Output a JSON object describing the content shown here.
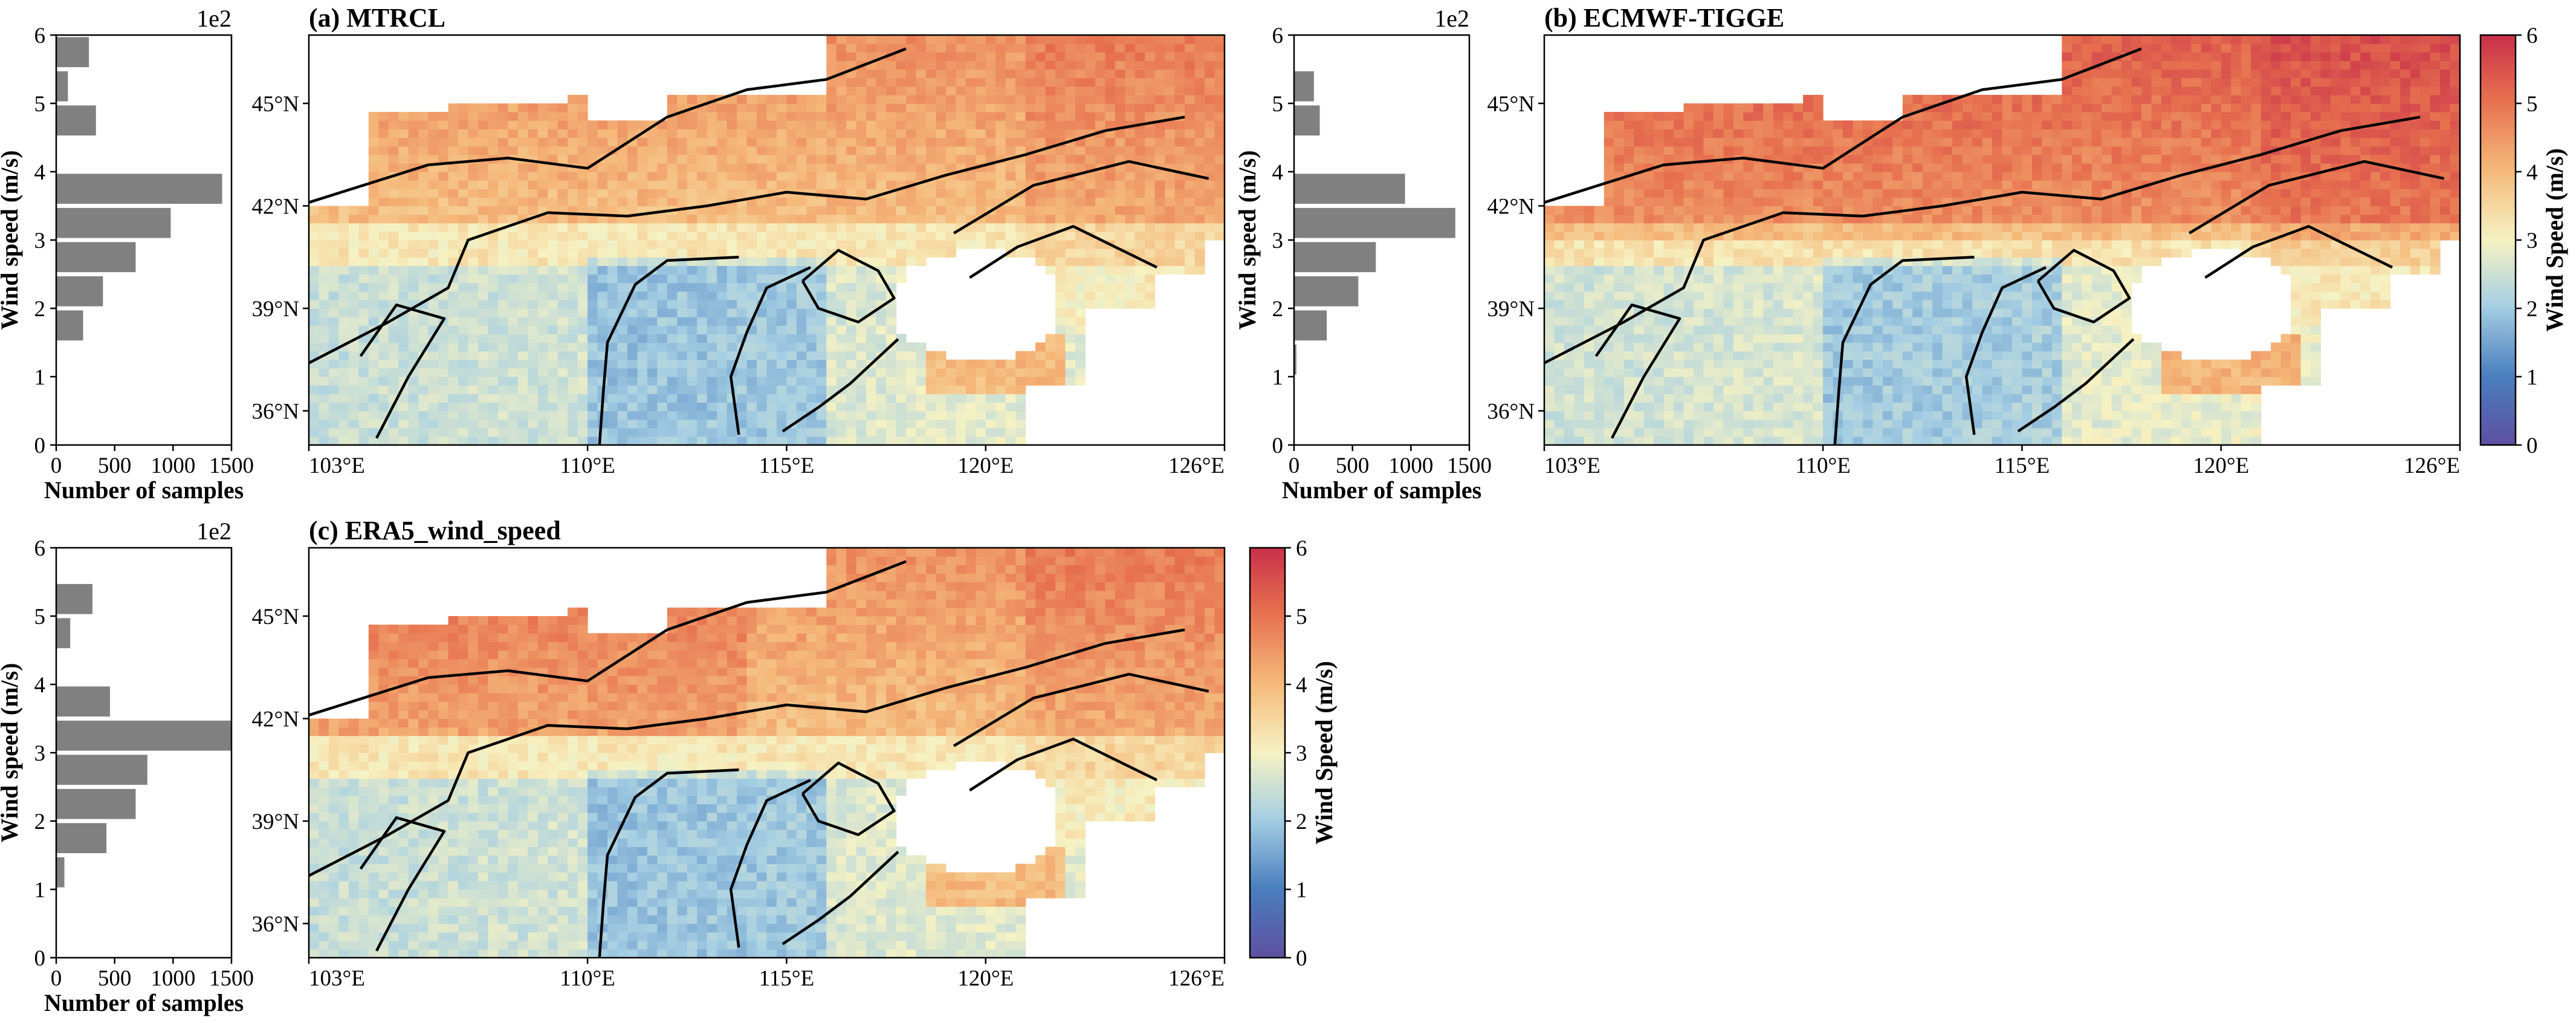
{
  "figure": {
    "panels": [
      {
        "id": "a",
        "title": "(a) MTRCL",
        "hist": {
          "multiplier": "1e2",
          "ylabel": "Wind speed (m/s)",
          "xlabel": "Number of samples",
          "yticks": [
            "0",
            "1",
            "2",
            "3",
            "4",
            "5",
            "6"
          ],
          "xticks": [
            "0",
            "500",
            "1000",
            "1500"
          ]
        }
      },
      {
        "id": "b",
        "title": "(b) ECMWF-TIGGE",
        "hist": {
          "multiplier": "1e2",
          "ylabel": "Wind speed (m/s)",
          "xlabel": "Number of samples",
          "yticks": [
            "0",
            "1",
            "2",
            "3",
            "4",
            "5",
            "6"
          ],
          "xticks": [
            "0",
            "500",
            "1000",
            "1500"
          ]
        }
      },
      {
        "id": "c",
        "title": "(c) ERA5_wind_speed",
        "hist": {
          "multiplier": "1e2",
          "ylabel": "Wind speed (m/s)",
          "xlabel": "Number of samples",
          "yticks": [
            "0",
            "1",
            "2",
            "3",
            "4",
            "5",
            "6"
          ],
          "xticks": [
            "0",
            "500",
            "1000",
            "1500"
          ]
        }
      }
    ],
    "map": {
      "lon_ticks": [
        "103°E",
        "110°E",
        "115°E",
        "120°E",
        "126°E"
      ],
      "lat_ticks": [
        "45°N",
        "42°N",
        "39°N",
        "36°N"
      ]
    },
    "colorbar": {
      "label": "Wind Speed (m/s)",
      "ticks": [
        "0",
        "1",
        "2",
        "3",
        "4",
        "5",
        "6"
      ],
      "stops": [
        "#5e4fa2",
        "#4a7fbf",
        "#a6cfe3",
        "#f6f2c3",
        "#f5b97a",
        "#e7714f",
        "#c9304a"
      ]
    }
  },
  "chart_data": [
    {
      "type": "bar",
      "orientation": "horizontal",
      "title": "(a) MTRCL",
      "xlabel": "Number of samples",
      "ylabel": "Wind speed (m/s)",
      "categories": [
        0.25,
        0.75,
        1.25,
        1.75,
        2.25,
        2.75,
        3.25,
        3.75,
        4.25,
        4.75,
        5.25,
        5.75
      ],
      "values": [
        0,
        0,
        0,
        230,
        400,
        680,
        980,
        1420,
        0,
        340,
        100,
        280
      ],
      "xlim": [
        0,
        1500
      ],
      "ylim": [
        0,
        6
      ],
      "y_multiplier": "1e2"
    },
    {
      "type": "bar",
      "orientation": "horizontal",
      "title": "(b) ECMWF-TIGGE",
      "xlabel": "Number of samples",
      "ylabel": "Wind speed (m/s)",
      "categories": [
        0.25,
        0.75,
        1.25,
        1.75,
        2.25,
        2.75,
        3.25,
        3.75,
        4.25,
        4.75,
        5.25,
        5.75
      ],
      "values": [
        0,
        0,
        20,
        280,
        550,
        700,
        1380,
        950,
        0,
        220,
        170,
        0
      ],
      "xlim": [
        0,
        1500
      ],
      "ylim": [
        0,
        6
      ],
      "y_multiplier": "1e2"
    },
    {
      "type": "bar",
      "orientation": "horizontal",
      "title": "(c) ERA5_wind_speed",
      "xlabel": "Number of samples",
      "ylabel": "Wind speed (m/s)",
      "categories": [
        0.25,
        0.75,
        1.25,
        1.75,
        2.25,
        2.75,
        3.25,
        3.75,
        4.25,
        4.75,
        5.25,
        5.75
      ],
      "values": [
        0,
        0,
        70,
        430,
        680,
        780,
        1500,
        460,
        0,
        120,
        310,
        0
      ],
      "xlim": [
        0,
        1500
      ],
      "ylim": [
        0,
        6
      ],
      "y_multiplier": "1e2"
    },
    {
      "type": "heatmap",
      "description_free": true,
      "xlim_lon": [
        103,
        126
      ],
      "ylim_lat": [
        35,
        47
      ],
      "colorbar_range": [
        0,
        6
      ],
      "colorbar_label": "Wind Speed (m/s)"
    }
  ]
}
